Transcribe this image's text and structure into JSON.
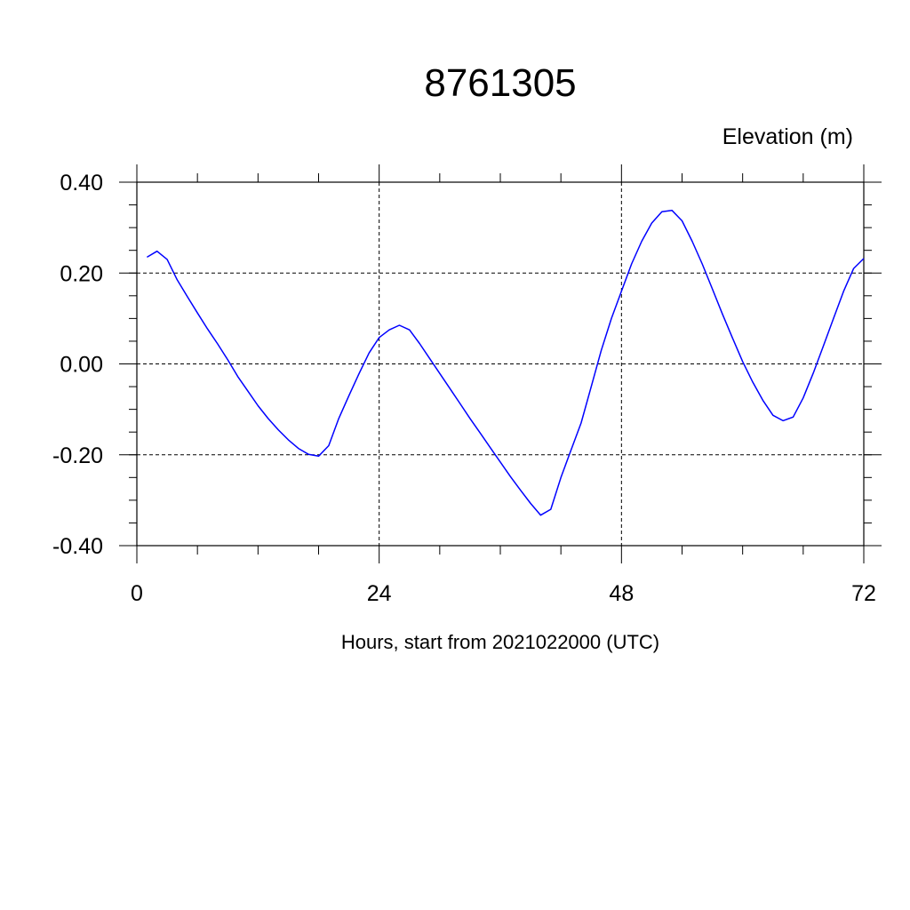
{
  "chart_data": {
    "type": "line",
    "title": "8761305",
    "ylabel": "Elevation (m)",
    "xlabel": "Hours, start from 2021022000 (UTC)",
    "xlim": [
      0,
      72
    ],
    "ylim": [
      -0.4,
      0.4
    ],
    "xticks": [
      0,
      24,
      48,
      72
    ],
    "xtick_labels": [
      "0",
      "24",
      "48",
      "72"
    ],
    "yticks": [
      -0.4,
      -0.2,
      0.0,
      0.2,
      0.4
    ],
    "ytick_labels": [
      "-0.40",
      "-0.20",
      "0.00",
      "0.20",
      "0.40"
    ],
    "grid": true,
    "series": [
      {
        "color": "#0000ff",
        "x": [
          1,
          2,
          3,
          4,
          5,
          6,
          7,
          8,
          9,
          10,
          11,
          12,
          13,
          14,
          15,
          16,
          17,
          18,
          19,
          20,
          21,
          22,
          23,
          24,
          25,
          26,
          27,
          28,
          29,
          30,
          31,
          32,
          33,
          34,
          35,
          36,
          37,
          38,
          39,
          40,
          41,
          42,
          43,
          44,
          45,
          46,
          47,
          48,
          49,
          50,
          51,
          52,
          53,
          54,
          55,
          56,
          57,
          58,
          59,
          60,
          61,
          62,
          63,
          64,
          65,
          66,
          67,
          68,
          69,
          70,
          71,
          72
        ],
        "y": [
          0.235,
          0.248,
          0.23,
          0.185,
          0.148,
          0.112,
          0.077,
          0.044,
          0.009,
          -0.028,
          -0.06,
          -0.092,
          -0.12,
          -0.145,
          -0.167,
          -0.186,
          -0.199,
          -0.203,
          -0.18,
          -0.12,
          -0.07,
          -0.022,
          0.024,
          0.058,
          0.075,
          0.085,
          0.075,
          0.045,
          0.012,
          -0.021,
          -0.054,
          -0.087,
          -0.12,
          -0.152,
          -0.184,
          -0.216,
          -0.248,
          -0.278,
          -0.307,
          -0.333,
          -0.32,
          -0.25,
          -0.19,
          -0.13,
          -0.05,
          0.03,
          0.1,
          0.16,
          0.22,
          0.27,
          0.31,
          0.335,
          0.338,
          0.315,
          0.27,
          0.22,
          0.165,
          0.11,
          0.057,
          0.005,
          -0.04,
          -0.08,
          -0.113,
          -0.125,
          -0.117,
          -0.075,
          -0.02,
          0.04,
          0.1,
          0.16,
          0.21,
          0.232
        ]
      }
    ]
  }
}
